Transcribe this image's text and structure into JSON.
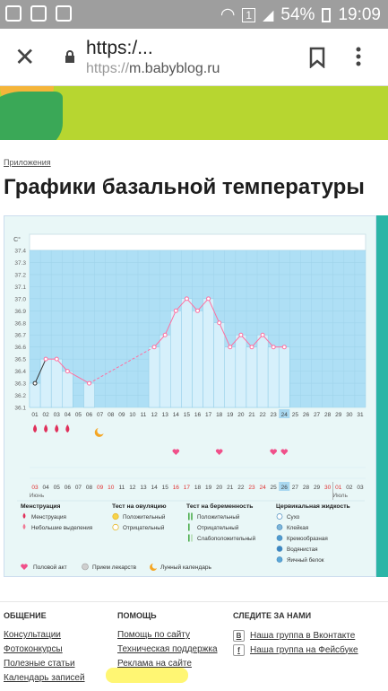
{
  "status_bar": {
    "battery": "54%",
    "time": "19:09",
    "sim": "1"
  },
  "browser": {
    "url_title": "https:/...",
    "url": "https://m.babyblog.ru",
    "url_scheme": "https://",
    "url_host": "m.babyblog.ru"
  },
  "page": {
    "breadcrumb": "Приложения",
    "title": "Графики базальной температуры"
  },
  "chart_data": {
    "type": "line",
    "ylabel": "C°",
    "ylim": [
      36.1,
      37.4
    ],
    "y_ticks": [
      "37.4",
      "37.3",
      "37.2",
      "37.1",
      "37.0",
      "36.9",
      "36.8",
      "36.7",
      "36.6",
      "36.5",
      "36.4",
      "36.3",
      "36.2",
      "36.1"
    ],
    "cycle_days": [
      "01",
      "02",
      "03",
      "04",
      "05",
      "06",
      "07",
      "08",
      "09",
      "10",
      "11",
      "12",
      "13",
      "14",
      "15",
      "16",
      "17",
      "18",
      "19",
      "20",
      "21",
      "22",
      "23",
      "24",
      "25",
      "26",
      "27",
      "28",
      "29",
      "30",
      "31"
    ],
    "highlighted_day": "24",
    "temperatures": [
      {
        "day": 1,
        "value": 36.3
      },
      {
        "day": 2,
        "value": 36.5
      },
      {
        "day": 3,
        "value": 36.5
      },
      {
        "day": 4,
        "value": 36.4
      },
      {
        "day": 6,
        "value": 36.3
      },
      {
        "day": 12,
        "value": 36.6
      },
      {
        "day": 13,
        "value": 36.7
      },
      {
        "day": 14,
        "value": 36.9
      },
      {
        "day": 15,
        "value": 37.0
      },
      {
        "day": 16,
        "value": 36.9
      },
      {
        "day": 17,
        "value": 37.0
      },
      {
        "day": 18,
        "value": 36.8
      },
      {
        "day": 19,
        "value": 36.6
      },
      {
        "day": 20,
        "value": 36.7
      },
      {
        "day": 21,
        "value": 36.6
      },
      {
        "day": 22,
        "value": 36.7
      },
      {
        "day": 23,
        "value": 36.6
      },
      {
        "day": 24,
        "value": 36.6
      }
    ],
    "gap_dashed": {
      "from_day": 6,
      "to_day": 12
    },
    "menstruation_days": [
      1,
      2,
      3,
      4
    ],
    "moon_day": 7,
    "intercourse_days": [
      14,
      18,
      23,
      24
    ],
    "calendar_dates": [
      {
        "label": "03",
        "red": true
      },
      {
        "label": "04",
        "red": false
      },
      {
        "label": "05",
        "red": false
      },
      {
        "label": "06",
        "red": false
      },
      {
        "label": "07",
        "red": false
      },
      {
        "label": "08",
        "red": false
      },
      {
        "label": "09",
        "red": true
      },
      {
        "label": "10",
        "red": true
      },
      {
        "label": "11",
        "red": false
      },
      {
        "label": "12",
        "red": false
      },
      {
        "label": "13",
        "red": false
      },
      {
        "label": "14",
        "red": false
      },
      {
        "label": "15",
        "red": false
      },
      {
        "label": "16",
        "red": true
      },
      {
        "label": "17",
        "red": true
      },
      {
        "label": "18",
        "red": false
      },
      {
        "label": "19",
        "red": false
      },
      {
        "label": "20",
        "red": false
      },
      {
        "label": "21",
        "red": false
      },
      {
        "label": "22",
        "red": false
      },
      {
        "label": "23",
        "red": true
      },
      {
        "label": "24",
        "red": true
      },
      {
        "label": "25",
        "red": false
      },
      {
        "label": "26",
        "red": false
      },
      {
        "label": "27",
        "red": false
      },
      {
        "label": "28",
        "red": false
      },
      {
        "label": "29",
        "red": false
      },
      {
        "label": "30",
        "red": true
      },
      {
        "label": "01",
        "red": true
      },
      {
        "label": "02",
        "red": false
      },
      {
        "label": "03",
        "red": false
      }
    ],
    "highlighted_date": "26",
    "month_june": "Июнь",
    "month_july": "Июль",
    "legend": {
      "menstruation": {
        "title": "Менструация",
        "items": [
          "Менструация",
          "Небольшие выделения"
        ]
      },
      "ovulation": {
        "title": "Тест на овуляцию",
        "items": [
          "Положительный",
          "Отрицательный"
        ]
      },
      "pregnancy": {
        "title": "Тест на беременность",
        "items": [
          "Положительный",
          "Отрицательный",
          "Слабоположительный"
        ]
      },
      "cervical": {
        "title": "Цервикальная жидкость",
        "items": [
          "Сухо",
          "Клейкая",
          "Кремообразная",
          "Водянистая",
          "Яичный белок"
        ]
      },
      "bottom": [
        "Половой акт",
        "Прием лекарств",
        "Лунный календарь"
      ]
    },
    "colors": {
      "plot_bg": "#aedff5",
      "bar": "#d6f0fb",
      "line": "#ff6fa0",
      "accent": "#3a7fbf"
    }
  },
  "footer": {
    "col1": {
      "title": "ОБЩЕНИЕ",
      "links": [
        "Консультации",
        "Фотоконкурсы",
        "Полезные статьи",
        "Календарь записей"
      ]
    },
    "col2": {
      "title": "ПОМОЩЬ",
      "links": [
        "Помощь по сайту",
        "Техническая поддержка",
        "Реклама на сайте"
      ]
    },
    "col3": {
      "title": "СЛЕДИТЕ ЗА НАМИ",
      "links": [
        "Наша группа в Вконтакте",
        "Наша группа на Фейсбуке"
      ],
      "icons": [
        "B",
        "f"
      ]
    }
  }
}
